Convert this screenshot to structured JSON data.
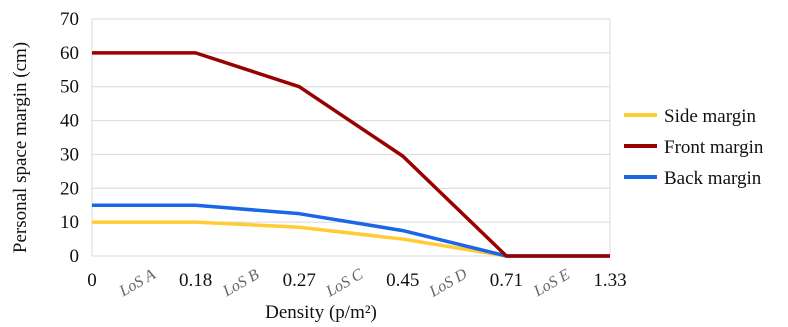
{
  "chart_data": {
    "type": "line",
    "x": [
      "0",
      "0.18",
      "0.27",
      "0.45",
      "0.71",
      "1.33"
    ],
    "series": [
      {
        "name": "Side margin",
        "color": "#ffcc33",
        "values": [
          10,
          10,
          8.5,
          5,
          0,
          0
        ]
      },
      {
        "name": "Front margin",
        "color": "#990000",
        "values": [
          60,
          60,
          50,
          29.5,
          0,
          0
        ]
      },
      {
        "name": "Back margin",
        "color": "#1a66e6",
        "values": [
          15,
          15,
          12.5,
          7.5,
          0,
          0
        ]
      }
    ],
    "region_labels": [
      "LoS A",
      "LoS B",
      "LoS C",
      "LoS D",
      "LoS E"
    ],
    "xlabel": "Density (p/m²)",
    "ylabel": "Personal space margin (cm)",
    "ylim": [
      0,
      70
    ],
    "yticks": [
      "0",
      "10",
      "20",
      "30",
      "40",
      "50",
      "60",
      "70"
    ],
    "grid": true,
    "legend": "right"
  }
}
